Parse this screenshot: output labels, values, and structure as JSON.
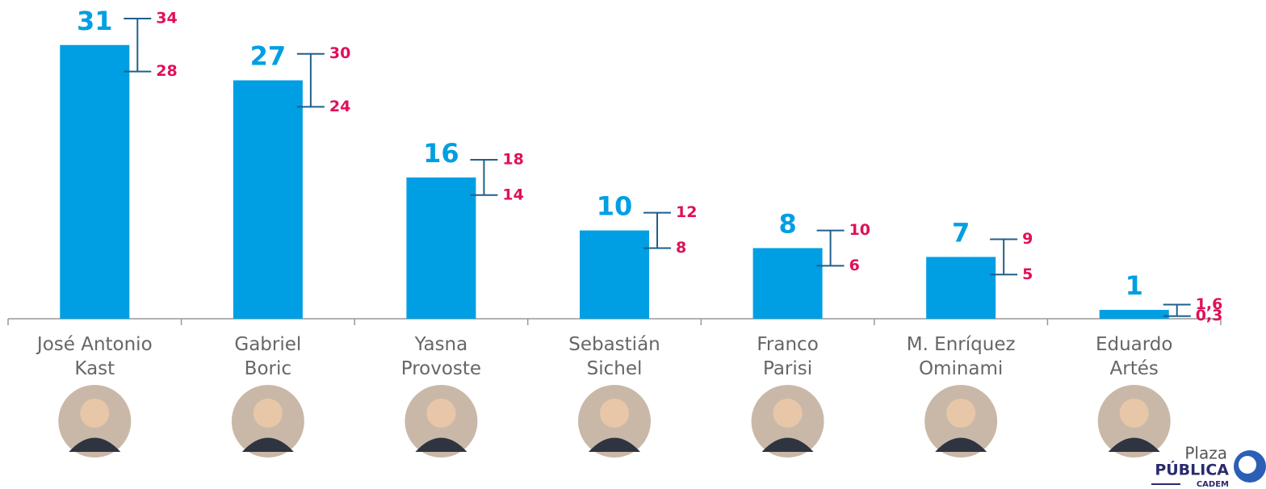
{
  "chart_data": {
    "type": "bar",
    "categories": [
      "José Antonio\nKast",
      "Gabriel\nBoric",
      "Yasna\nProvoste",
      "Sebastián\nSichel",
      "Franco\nParisi",
      "M. Enríquez\nOminami",
      "Eduardo\nArtés"
    ],
    "series": [
      {
        "color": "#009fe3",
        "values": [
          31,
          27,
          16,
          10,
          8,
          7,
          1
        ],
        "low": [
          28,
          24,
          14,
          8,
          6,
          5,
          {
            "value": 0.3,
            "label": "0,3"
          }
        ],
        "high": [
          34,
          30,
          18,
          12,
          10,
          9,
          {
            "value": 1.6,
            "label": "1,6"
          }
        ]
      }
    ],
    "ylim": [
      0,
      35
    ]
  },
  "logo": {
    "top": "Plaza",
    "main": "PÚBLICA",
    "sub": "CADEM"
  }
}
